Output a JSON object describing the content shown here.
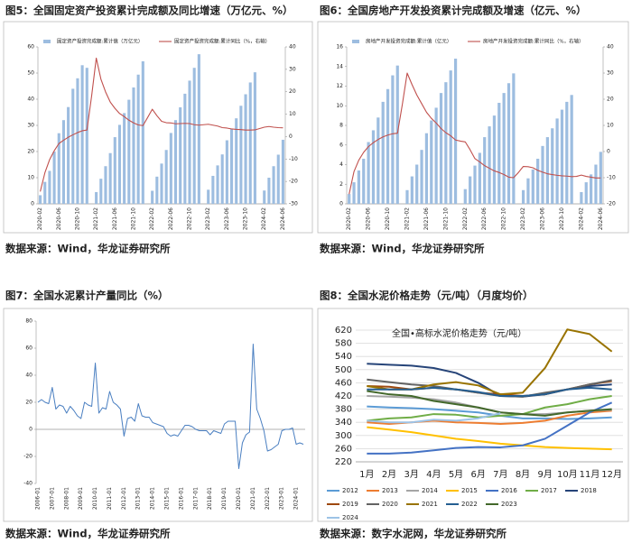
{
  "captions": [
    "图5：全国固定资产投资累计完成额及同比增速（万亿元、%）",
    "图6：全国房地产开发投资累计完成额及增速（亿元、%）",
    "图7：全国水泥累计产量同比（%）",
    "图8：全国水泥价格走势（元/吨）（月度均价）"
  ],
  "sources": [
    "数据来源：Wind，华龙证券研究所",
    "数据来源：Wind，华龙证券研究所",
    "数据来源：Wind，华龙证券研究所",
    "数据来源：数字水泥网，华龙证券研究所"
  ],
  "chart_data": [
    {
      "type": "combo",
      "categories": [
        "2020-02",
        null,
        null,
        null,
        "2020-06",
        null,
        null,
        null,
        "2020-10",
        null,
        null,
        null,
        "2021-02",
        null,
        null,
        null,
        "2021-06",
        null,
        null,
        null,
        "2021-10",
        null,
        null,
        null,
        "2022-02",
        null,
        null,
        null,
        "2022-06",
        null,
        null,
        null,
        "2022-10",
        null,
        null,
        null,
        "2023-02",
        null,
        null,
        null,
        "2023-06",
        null,
        null,
        null,
        "2023-10",
        null,
        null,
        null,
        "2024-02",
        null,
        null,
        null,
        "2024-06"
      ],
      "ylim": [
        0,
        60
      ],
      "yticks": [
        0,
        10,
        20,
        30,
        40,
        50,
        60
      ],
      "y2lim": [
        -30,
        40
      ],
      "y2ticks": [
        -30,
        -20,
        -10,
        0,
        10,
        20,
        30,
        40
      ],
      "series": [
        {
          "name": "固定资产投资完成额:累计值（万亿元）",
          "type": "bar",
          "color": "#9dbde0",
          "values": [
            3.3,
            8.4,
            12.6,
            20,
            27,
            32,
            37,
            44,
            48,
            53,
            52,
            null,
            4.5,
            9.6,
            14.4,
            19.4,
            25.5,
            30.2,
            34.7,
            39.8,
            44.5,
            49.4,
            54.5,
            null,
            5.0,
            10.4,
            15.4,
            20.6,
            27.1,
            32.0,
            36.9,
            42.1,
            47.1,
            52.0,
            57.2,
            null,
            5.4,
            10.7,
            14.7,
            18.9,
            24.3,
            28.6,
            32.7,
            37.5,
            41.9,
            46.4,
            50.3,
            null,
            5.1,
            10.0,
            14.4,
            18.8,
            24.5
          ]
        },
        {
          "name": "固定资产投资完成额:累计同比（%，右轴）",
          "type": "line",
          "axis": "y2",
          "color": "#c0504d",
          "values": [
            -24.5,
            -16.1,
            -10.3,
            -6.3,
            -3.1,
            -1.6,
            -0.3,
            0.8,
            1.8,
            2.6,
            2.9,
            18,
            35,
            25.6,
            19.9,
            15.4,
            12.6,
            10.3,
            8.9,
            7.3,
            6.1,
            5.2,
            4.9,
            8.5,
            12.2,
            9.3,
            6.8,
            6.2,
            6.1,
            5.7,
            5.8,
            5.9,
            5.8,
            5.3,
            5.1,
            5.3,
            5.5,
            5.1,
            4.7,
            4.0,
            3.8,
            3.4,
            3.2,
            3.1,
            2.9,
            2.9,
            3.0,
            3.6,
            4.2,
            4.5,
            4.2,
            4.0,
            3.9
          ]
        }
      ]
    },
    {
      "type": "combo",
      "categories": [
        "2020-02",
        null,
        null,
        null,
        "2020-06",
        null,
        null,
        null,
        "2020-10",
        null,
        null,
        null,
        "2021-02",
        null,
        null,
        null,
        "2021-06",
        null,
        null,
        null,
        "2021-10",
        null,
        null,
        null,
        "2022-02",
        null,
        null,
        null,
        "2022-06",
        null,
        null,
        null,
        "2022-10",
        null,
        null,
        null,
        "2023-02",
        null,
        null,
        null,
        "2023-06",
        null,
        null,
        null,
        "2023-10",
        null,
        null,
        null,
        "2024-02",
        null,
        null,
        null,
        "2024-06"
      ],
      "ylim": [
        0,
        16
      ],
      "yticks": [
        0,
        2,
        4,
        6,
        8,
        10,
        12,
        14,
        16
      ],
      "y2lim": [
        -20,
        40
      ],
      "y2ticks": [
        -20,
        -10,
        0,
        10,
        20,
        30,
        40
      ],
      "series": [
        {
          "name": "房地产开发投资完成额:累计值（亿元）",
          "type": "bar",
          "color": "#9dbde0",
          "values": [
            1.0,
            2.2,
            3.4,
            4.6,
            6.3,
            7.5,
            8.8,
            10.4,
            11.7,
            13.1,
            14.1,
            null,
            1.4,
            2.8,
            4.0,
            5.5,
            7.2,
            8.5,
            9.8,
            11.3,
            12.4,
            13.6,
            14.8,
            null,
            1.5,
            2.8,
            3.9,
            5.2,
            6.8,
            7.9,
            9.0,
            10.3,
            11.3,
            12.3,
            13.3,
            null,
            1.4,
            2.6,
            3.5,
            4.6,
            5.9,
            6.8,
            7.7,
            8.7,
            9.6,
            10.4,
            11.1,
            null,
            1.2,
            2.2,
            3.0,
            4.0,
            5.3
          ]
        },
        {
          "name": "房地产开发投资完成额:累计同比（%，右轴）",
          "type": "line",
          "axis": "y2",
          "color": "#c0504d",
          "values": [
            -16.3,
            -7.7,
            -3.3,
            -0.3,
            1.9,
            3.4,
            4.6,
            5.6,
            6.3,
            6.8,
            7.0,
            18,
            30,
            25.6,
            21.6,
            18.3,
            15.0,
            12.7,
            10.9,
            8.8,
            7.2,
            6.0,
            4.4,
            4,
            3.7,
            0.7,
            -2.7,
            -4.0,
            -5.4,
            -6.4,
            -7.4,
            -8.0,
            -8.8,
            -9.8,
            -10.0,
            -8,
            -5.7,
            -5.8,
            -6.2,
            -7.2,
            -7.9,
            -8.5,
            -8.8,
            -9.1,
            -9.3,
            -9.4,
            -9.6,
            -9.5,
            -9.0,
            -9.5,
            -9.8,
            -10.1,
            -10.1
          ]
        }
      ]
    },
    {
      "type": "line",
      "categories": [
        "2006-01",
        null,
        null,
        null,
        "2007-01",
        null,
        null,
        null,
        "2008-01",
        null,
        null,
        null,
        "2009-01",
        null,
        null,
        null,
        "2010-01",
        null,
        null,
        null,
        "2011-01",
        null,
        null,
        null,
        "2012-01",
        null,
        null,
        null,
        "2013-01",
        null,
        null,
        null,
        "2014-01",
        null,
        null,
        null,
        "2015-01",
        null,
        null,
        null,
        "2016-01",
        null,
        null,
        null,
        "2017-01",
        null,
        null,
        null,
        "2018-01",
        null,
        null,
        null,
        "2019-01",
        null,
        null,
        null,
        "2020-01",
        null,
        null,
        null,
        "2021-01",
        null,
        null,
        null,
        "2022-01",
        null,
        null,
        null,
        "2023-01",
        null,
        null,
        null,
        "2024-01",
        null,
        null
      ],
      "ylim": [
        -40,
        80
      ],
      "yticks": [
        -40,
        -20,
        0,
        20,
        40,
        60,
        80
      ],
      "series": [
        {
          "color": "#4a7fc1",
          "values": [
            20,
            22,
            20,
            19,
            31,
            15,
            18,
            17,
            12,
            17,
            14,
            10,
            8,
            20,
            18,
            17,
            49,
            12,
            16,
            15,
            28,
            20,
            18,
            15,
            -5,
            8,
            9,
            6,
            19,
            10,
            9,
            9,
            5,
            4,
            3,
            2,
            -3,
            -5,
            -4,
            -5,
            -1,
            3,
            3,
            2,
            0,
            -1,
            -1,
            -1,
            -4,
            -1,
            -2,
            -3,
            4,
            6,
            6,
            6,
            -29,
            -10,
            -4,
            -2,
            63,
            15,
            8,
            -1,
            -16,
            -15,
            -13,
            -11,
            -1,
            0,
            0,
            1,
            -11,
            -10,
            -11
          ]
        }
      ]
    },
    {
      "type": "line",
      "title": "全国•高标水泥价格走势（元/吨）",
      "grid": true,
      "categories": [
        "1月",
        "2月",
        "3月",
        "4月",
        "5月",
        "6月",
        "7月",
        "8月",
        "9月",
        "10月",
        "11月",
        "12月"
      ],
      "ylim": [
        220,
        620
      ],
      "yticks": [
        220,
        260,
        300,
        340,
        380,
        420,
        460,
        500,
        540,
        580,
        620
      ],
      "series": [
        {
          "name": "2012",
          "color": "#5b9bd5",
          "values": [
            388,
            385,
            383,
            380,
            375,
            370,
            360,
            352,
            352,
            350,
            352,
            355
          ]
        },
        {
          "name": "2013",
          "color": "#ed7d31",
          "values": [
            340,
            335,
            340,
            345,
            340,
            338,
            335,
            338,
            345,
            360,
            370,
            375
          ]
        },
        {
          "name": "2014",
          "color": "#a5a5a5",
          "values": [
            420,
            418,
            415,
            410,
            400,
            385,
            370,
            365,
            365,
            370,
            375,
            378
          ]
        },
        {
          "name": "2015",
          "color": "#ffc000",
          "values": [
            325,
            318,
            310,
            300,
            290,
            283,
            275,
            270,
            265,
            262,
            260,
            258
          ]
        },
        {
          "name": "2016",
          "color": "#4472c4",
          "values": [
            245,
            245,
            248,
            255,
            262,
            265,
            264,
            270,
            290,
            330,
            370,
            400
          ]
        },
        {
          "name": "2017",
          "color": "#70ad47",
          "values": [
            345,
            352,
            355,
            365,
            363,
            355,
            360,
            365,
            385,
            395,
            410,
            420
          ]
        },
        {
          "name": "2018",
          "color": "#264478",
          "values": [
            518,
            515,
            512,
            505,
            490,
            460,
            420,
            418,
            425,
            440,
            450,
            455
          ]
        },
        {
          "name": "2019",
          "color": "#9e480e",
          "values": [
            450,
            448,
            440,
            445,
            440,
            430,
            425,
            420,
            425,
            440,
            455,
            465
          ]
        },
        {
          "name": "2020",
          "color": "#636363",
          "values": [
            470,
            462,
            455,
            450,
            440,
            430,
            420,
            418,
            430,
            440,
            455,
            468
          ]
        },
        {
          "name": "2021",
          "color": "#997300",
          "values": [
            450,
            440,
            440,
            455,
            462,
            452,
            425,
            430,
            505,
            622,
            608,
            555
          ]
        },
        {
          "name": "2022",
          "color": "#255e91",
          "values": [
            440,
            440,
            440,
            445,
            440,
            432,
            420,
            420,
            425,
            440,
            445,
            440
          ]
        },
        {
          "name": "2023",
          "color": "#43682b",
          "values": [
            435,
            425,
            420,
            405,
            395,
            385,
            370,
            365,
            360,
            370,
            375,
            380
          ]
        },
        {
          "name": "2024",
          "color": "#9dc3e6",
          "values": [
            345,
            340,
            340,
            348,
            345,
            352,
            368,
            null,
            null,
            null,
            null,
            null
          ]
        }
      ]
    }
  ]
}
